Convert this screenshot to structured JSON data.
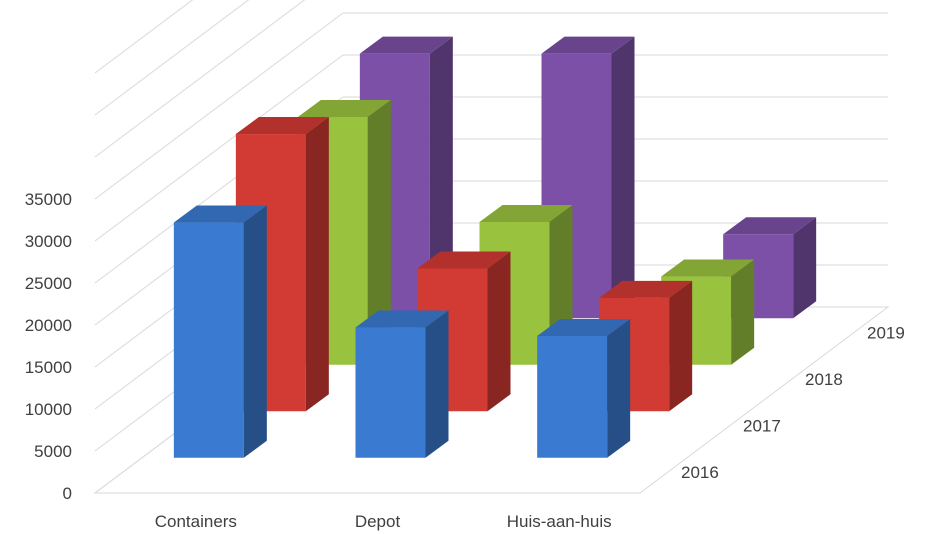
{
  "chart_data": {
    "type": "bar",
    "categories": [
      "Containers",
      "Depot",
      "Huis-aan-huis"
    ],
    "series": [
      {
        "name": "2016",
        "color": "#3a7ad0",
        "values": [
          28000,
          15500,
          14500
        ]
      },
      {
        "name": "2017",
        "color": "#d23a34",
        "values": [
          33000,
          17000,
          13500
        ]
      },
      {
        "name": "2018",
        "color": "#99c23e",
        "values": [
          29500,
          17000,
          10500
        ]
      },
      {
        "name": "2019",
        "color": "#7b50a6",
        "values": [
          31500,
          31500,
          10000
        ]
      }
    ],
    "y_ticks": [
      0,
      5000,
      10000,
      15000,
      20000,
      25000,
      30000,
      35000
    ],
    "ylim": [
      0,
      50000
    ],
    "grid": true,
    "projection": "3d-column"
  }
}
